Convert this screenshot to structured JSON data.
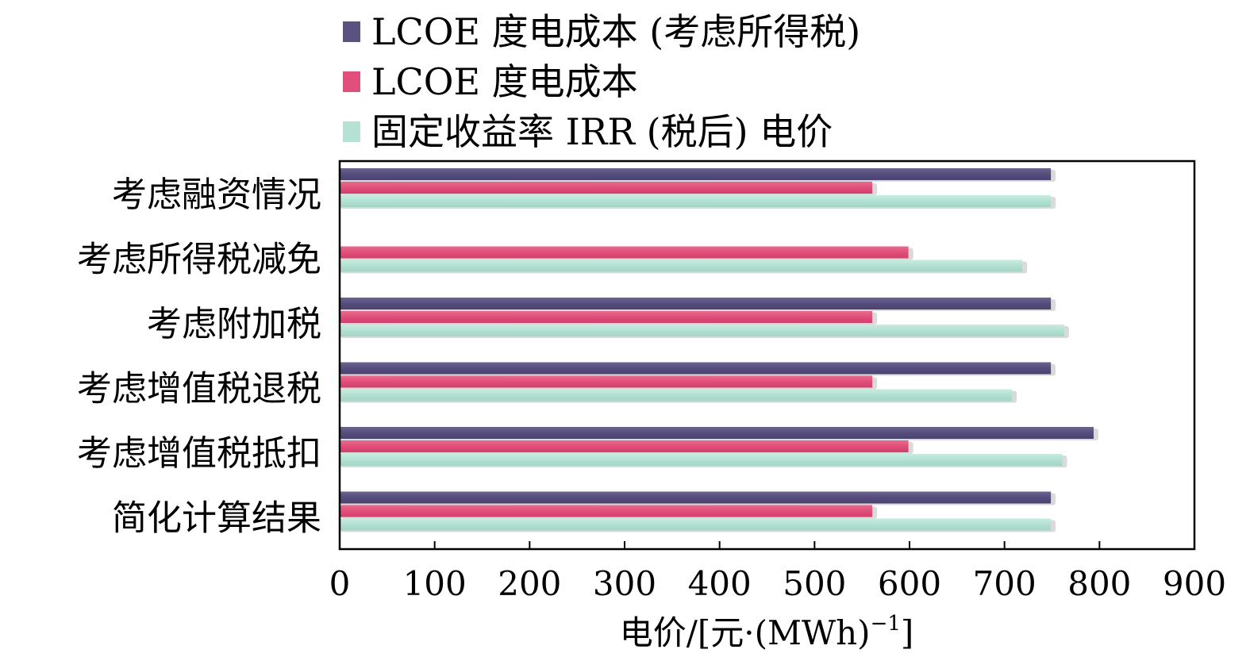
{
  "chart_data": {
    "type": "bar",
    "orientation": "horizontal",
    "title": "",
    "xlabel": "电价/[元·(MWh)",
    "xlabel_sup": "−1",
    "xlabel_end": "]",
    "ylabel": "",
    "xlim": [
      0,
      900
    ],
    "xticks": [
      "0",
      "100",
      "200",
      "300",
      "400",
      "500",
      "600",
      "700",
      "800",
      "900"
    ],
    "grid": false,
    "legend_position": "top",
    "categories": [
      "考虑融资情况",
      "考虑所得税减免",
      "考虑附加税",
      "考虑增值税退税",
      "考虑增值税抵扣",
      "简化计算结果"
    ],
    "series": [
      {
        "name": "LCOE 度电成本 (考虑所得税)",
        "color": "#5b5280",
        "values": [
          748,
          null,
          748,
          748,
          793,
          748
        ]
      },
      {
        "name": "LCOE 度电成本",
        "color": "#e0507a",
        "values": [
          560,
          598,
          560,
          560,
          598,
          560
        ]
      },
      {
        "name": "固定收益率 IRR (税后) 电价",
        "color": "#b5e2d5",
        "values": [
          748,
          718,
          762,
          707,
          760,
          748
        ]
      }
    ]
  }
}
